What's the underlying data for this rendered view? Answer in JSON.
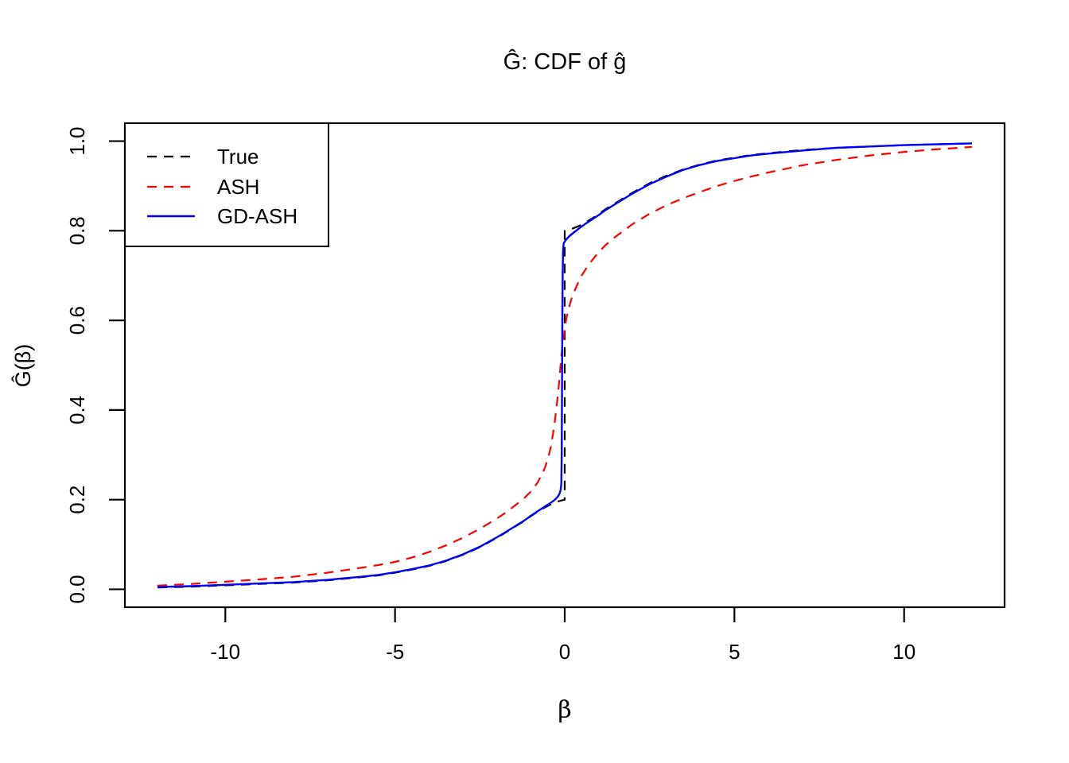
{
  "figure": {
    "background": "#FFFFFF"
  },
  "chart_data": {
    "type": "line",
    "title": "Ĝ: CDF of ĝ",
    "xlabel": "β",
    "ylabel": "Ĝ(β)",
    "xlim": [
      -12.96,
      12.96
    ],
    "ylim": [
      -0.04,
      1.04
    ],
    "grid": false,
    "frame_color": "#000000",
    "x_ticks": {
      "values": [
        -10,
        -5,
        0,
        5,
        10
      ],
      "labels": [
        "-10",
        "-5",
        "0",
        "5",
        "10"
      ]
    },
    "y_ticks": {
      "values": [
        0,
        0.2,
        0.4,
        0.6,
        0.8,
        1.0
      ],
      "labels": [
        "0.0",
        "0.2",
        "0.4",
        "0.6",
        "0.8",
        "1.0"
      ]
    },
    "legend": {
      "position": "top-left",
      "border": true
    },
    "series": [
      {
        "name": "True",
        "color": "#000000",
        "style": "dashed",
        "width": 2.2,
        "points": [
          [
            -12,
            0.004
          ],
          [
            -11,
            0.006
          ],
          [
            -10,
            0.009
          ],
          [
            -9,
            0.012
          ],
          [
            -8,
            0.015
          ],
          [
            -7,
            0.02
          ],
          [
            -6,
            0.027
          ],
          [
            -5.5,
            0.031
          ],
          [
            -5,
            0.037
          ],
          [
            -4.5,
            0.044
          ],
          [
            -4,
            0.052
          ],
          [
            -3.5,
            0.063
          ],
          [
            -3,
            0.077
          ],
          [
            -2.5,
            0.094
          ],
          [
            -2,
            0.115
          ],
          [
            -1.8,
            0.124
          ],
          [
            -1.5,
            0.138
          ],
          [
            -1.2,
            0.152
          ],
          [
            -1,
            0.163
          ],
          [
            -0.8,
            0.173
          ],
          [
            -0.6,
            0.182
          ],
          [
            -0.4,
            0.19
          ],
          [
            -0.2,
            0.196
          ],
          [
            -0.05,
            0.199
          ],
          [
            0,
            0.2
          ],
          [
            0,
            0.8
          ],
          [
            0.05,
            0.801
          ],
          [
            0.2,
            0.804
          ],
          [
            0.4,
            0.81
          ],
          [
            0.6,
            0.818
          ],
          [
            0.8,
            0.827
          ],
          [
            1,
            0.837
          ],
          [
            1.2,
            0.848
          ],
          [
            1.5,
            0.862
          ],
          [
            1.8,
            0.876
          ],
          [
            2,
            0.885
          ],
          [
            2.5,
            0.906
          ],
          [
            3,
            0.923
          ],
          [
            3.5,
            0.937
          ],
          [
            4,
            0.948
          ],
          [
            4.5,
            0.957
          ],
          [
            5,
            0.963
          ],
          [
            5.5,
            0.969
          ],
          [
            6,
            0.973
          ],
          [
            7,
            0.98
          ],
          [
            8,
            0.985
          ],
          [
            9,
            0.988
          ],
          [
            10,
            0.991
          ],
          [
            11,
            0.993
          ],
          [
            12,
            0.995
          ]
        ]
      },
      {
        "name": "ASH",
        "color": "#FF0000",
        "style": "dashed",
        "width": 2.2,
        "points": [
          [
            -12,
            0.008
          ],
          [
            -11,
            0.012
          ],
          [
            -10,
            0.017
          ],
          [
            -9,
            0.022
          ],
          [
            -8,
            0.028
          ],
          [
            -7,
            0.037
          ],
          [
            -6,
            0.048
          ],
          [
            -5.5,
            0.054
          ],
          [
            -5,
            0.061
          ],
          [
            -4.5,
            0.071
          ],
          [
            -4,
            0.083
          ],
          [
            -3.5,
            0.098
          ],
          [
            -3,
            0.115
          ],
          [
            -2.5,
            0.135
          ],
          [
            -2,
            0.158
          ],
          [
            -1.8,
            0.168
          ],
          [
            -1.5,
            0.185
          ],
          [
            -1.2,
            0.203
          ],
          [
            -1,
            0.218
          ],
          [
            -0.8,
            0.238
          ],
          [
            -0.6,
            0.268
          ],
          [
            -0.5,
            0.29
          ],
          [
            -0.4,
            0.32
          ],
          [
            -0.3,
            0.37
          ],
          [
            -0.2,
            0.435
          ],
          [
            -0.15,
            0.475
          ],
          [
            -0.1,
            0.52
          ],
          [
            -0.05,
            0.553
          ],
          [
            0,
            0.582
          ],
          [
            0.05,
            0.605
          ],
          [
            0.1,
            0.622
          ],
          [
            0.2,
            0.648
          ],
          [
            0.3,
            0.668
          ],
          [
            0.4,
            0.685
          ],
          [
            0.5,
            0.7
          ],
          [
            0.7,
            0.724
          ],
          [
            0.9,
            0.743
          ],
          [
            1,
            0.752
          ],
          [
            1.2,
            0.768
          ],
          [
            1.5,
            0.787
          ],
          [
            2,
            0.815
          ],
          [
            2.5,
            0.838
          ],
          [
            3,
            0.857
          ],
          [
            3.5,
            0.873
          ],
          [
            4,
            0.887
          ],
          [
            4.5,
            0.9
          ],
          [
            5,
            0.911
          ],
          [
            5.5,
            0.921
          ],
          [
            6,
            0.93
          ],
          [
            7,
            0.946
          ],
          [
            8,
            0.958
          ],
          [
            9,
            0.968
          ],
          [
            10,
            0.976
          ],
          [
            11,
            0.982
          ],
          [
            12,
            0.987
          ]
        ]
      },
      {
        "name": "GD-ASH",
        "color": "#0000FF",
        "style": "solid",
        "width": 2.4,
        "points": [
          [
            -12,
            0.005
          ],
          [
            -11,
            0.007
          ],
          [
            -10,
            0.01
          ],
          [
            -9,
            0.013
          ],
          [
            -8,
            0.016
          ],
          [
            -7,
            0.021
          ],
          [
            -6,
            0.028
          ],
          [
            -5.5,
            0.032
          ],
          [
            -5,
            0.038
          ],
          [
            -4.5,
            0.045
          ],
          [
            -4,
            0.053
          ],
          [
            -3.5,
            0.064
          ],
          [
            -3,
            0.078
          ],
          [
            -2.5,
            0.095
          ],
          [
            -2,
            0.116
          ],
          [
            -1.8,
            0.125
          ],
          [
            -1.5,
            0.139
          ],
          [
            -1.2,
            0.153
          ],
          [
            -1,
            0.164
          ],
          [
            -0.8,
            0.174
          ],
          [
            -0.6,
            0.184
          ],
          [
            -0.45,
            0.191
          ],
          [
            -0.3,
            0.199
          ],
          [
            -0.2,
            0.207
          ],
          [
            -0.15,
            0.214
          ],
          [
            -0.12,
            0.222
          ],
          [
            -0.1,
            0.235
          ],
          [
            -0.09,
            0.3
          ],
          [
            -0.08,
            0.45
          ],
          [
            -0.07,
            0.6
          ],
          [
            -0.06,
            0.7
          ],
          [
            -0.05,
            0.755
          ],
          [
            -0.03,
            0.772
          ],
          [
            0.05,
            0.781
          ],
          [
            0.15,
            0.789
          ],
          [
            0.3,
            0.798
          ],
          [
            0.45,
            0.807
          ],
          [
            0.6,
            0.815
          ],
          [
            0.8,
            0.825
          ],
          [
            1,
            0.835
          ],
          [
            1.2,
            0.846
          ],
          [
            1.5,
            0.86
          ],
          [
            1.8,
            0.874
          ],
          [
            2,
            0.883
          ],
          [
            2.5,
            0.904
          ],
          [
            3,
            0.921
          ],
          [
            3.5,
            0.936
          ],
          [
            4,
            0.947
          ],
          [
            4.5,
            0.956
          ],
          [
            5,
            0.962
          ],
          [
            5.5,
            0.968
          ],
          [
            6,
            0.972
          ],
          [
            7,
            0.979
          ],
          [
            8,
            0.985
          ],
          [
            9,
            0.988
          ],
          [
            10,
            0.991
          ],
          [
            11,
            0.993
          ],
          [
            12,
            0.995
          ]
        ]
      }
    ]
  }
}
